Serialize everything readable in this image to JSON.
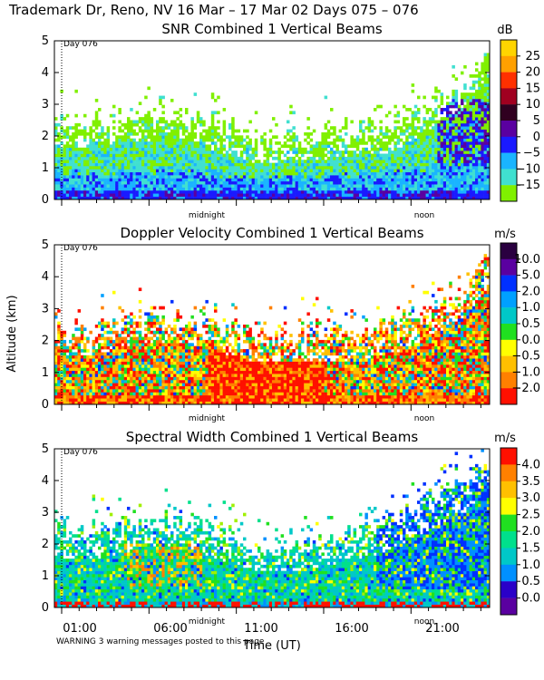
{
  "header": {
    "title": "Trademark Dr, Reno, NV  16 Mar – 17 Mar 02 Days 075 – 076"
  },
  "footer": {
    "warning": "WARNING  3 warning messages posted to this page",
    "time_axis_label": "Time (UT)"
  },
  "colors": {
    "spectral_scale": [
      "#5a00a0",
      "#2a00c8",
      "#0030ff",
      "#0090ff",
      "#00c8c8",
      "#00e08c",
      "#20e020",
      "#a0f000",
      "#ffff00",
      "#ffc000",
      "#ff8000",
      "#ff2000"
    ]
  },
  "chart_data": [
    {
      "type": "heatmap",
      "title": "SNR Combined 1 Vertical Beams",
      "ylabel": "",
      "ylim": [
        0,
        5
      ],
      "yticks": [
        "0",
        "1",
        "2",
        "3",
        "4",
        "5"
      ],
      "day_marker": "Day 076",
      "time_markers": [
        "midnight",
        "noon"
      ],
      "colorbar": {
        "unit": "dB",
        "ticks": [
          "25",
          "20",
          "15",
          "10",
          "5",
          "0",
          "−5",
          "−10",
          "−15"
        ],
        "colors": [
          "#ffd400",
          "#ffa000",
          "#ff3000",
          "#a00020",
          "#300020",
          "#5a00a0",
          "#1a1aff",
          "#1ab4ff",
          "#40e0d0",
          "#80f000"
        ]
      },
      "profile": [
        {
          "t": 0.0,
          "top": 2.5,
          "core": 1.7
        },
        {
          "t": 0.08,
          "top": 2.4,
          "core": 1.6
        },
        {
          "t": 0.18,
          "top": 2.6,
          "core": 1.8
        },
        {
          "t": 0.28,
          "top": 2.7,
          "core": 2.0
        },
        {
          "t": 0.38,
          "top": 2.4,
          "core": 1.5
        },
        {
          "t": 0.48,
          "top": 1.9,
          "core": 1.1
        },
        {
          "t": 0.58,
          "top": 2.0,
          "core": 1.2
        },
        {
          "t": 0.68,
          "top": 2.3,
          "core": 1.4
        },
        {
          "t": 0.78,
          "top": 2.5,
          "core": 1.5
        },
        {
          "t": 0.88,
          "top": 3.0,
          "core": 2.4
        },
        {
          "t": 0.95,
          "top": 3.6,
          "core": 3.0
        },
        {
          "t": 1.0,
          "top": 4.8,
          "core": 4.0
        }
      ]
    },
    {
      "type": "heatmap",
      "title": "Doppler Velocity Combined 1 Vertical Beams",
      "ylabel": "Altitude (km)",
      "ylim": [
        0,
        5
      ],
      "yticks": [
        "0",
        "1",
        "2",
        "3",
        "4",
        "5"
      ],
      "day_marker": "Day 076",
      "time_markers": [
        "midnight",
        "noon"
      ],
      "colorbar": {
        "unit": "m/s",
        "ticks": [
          "10.0",
          "5.0",
          "2.0",
          "1.0",
          "0.5",
          "0.0",
          "−0.5",
          "−1.0",
          "−2.0"
        ],
        "colors": [
          "#2a0040",
          "#5a00a0",
          "#0030ff",
          "#00a0ff",
          "#00c8c8",
          "#20e020",
          "#ffff00",
          "#ffc000",
          "#ff8000",
          "#ff1000"
        ]
      },
      "profile": [
        {
          "t": 0.0,
          "top": 2.4,
          "core": 1.6
        },
        {
          "t": 0.08,
          "top": 2.3,
          "core": 1.5
        },
        {
          "t": 0.18,
          "top": 2.7,
          "core": 1.9
        },
        {
          "t": 0.28,
          "top": 2.7,
          "core": 2.0
        },
        {
          "t": 0.38,
          "top": 2.5,
          "core": 1.6
        },
        {
          "t": 0.48,
          "top": 2.1,
          "core": 1.3
        },
        {
          "t": 0.58,
          "top": 2.2,
          "core": 1.3
        },
        {
          "t": 0.68,
          "top": 2.4,
          "core": 1.4
        },
        {
          "t": 0.78,
          "top": 2.6,
          "core": 1.6
        },
        {
          "t": 0.88,
          "top": 3.0,
          "core": 2.2
        },
        {
          "t": 0.95,
          "top": 3.6,
          "core": 2.8
        },
        {
          "t": 1.0,
          "top": 4.6,
          "core": 3.8
        }
      ]
    },
    {
      "type": "heatmap",
      "title": "Spectral Width Combined 1 Vertical Beams",
      "ylabel": "",
      "ylim": [
        0,
        5
      ],
      "yticks": [
        "0",
        "1",
        "2",
        "3",
        "4",
        "5"
      ],
      "day_marker": "Day 076",
      "time_markers": [
        "midnight",
        "noon"
      ],
      "xticks": [
        "01:00",
        "06:00",
        "11:00",
        "16:00",
        "21:00"
      ],
      "colorbar": {
        "unit": "m/s",
        "ticks": [
          "4.0",
          "3.5",
          "3.0",
          "2.5",
          "2.0",
          "1.5",
          "1.0",
          "0.5",
          "0.0"
        ],
        "colors": [
          "#ff1000",
          "#ff8000",
          "#ffc000",
          "#ffff00",
          "#20e020",
          "#00e08c",
          "#00c8c8",
          "#0090ff",
          "#2a00c8",
          "#5a00a0"
        ]
      },
      "profile": [
        {
          "t": 0.0,
          "top": 2.5,
          "core": 1.6
        },
        {
          "t": 0.08,
          "top": 2.4,
          "core": 1.5
        },
        {
          "t": 0.18,
          "top": 2.6,
          "core": 1.8
        },
        {
          "t": 0.28,
          "top": 2.8,
          "core": 2.0
        },
        {
          "t": 0.38,
          "top": 2.4,
          "core": 1.5
        },
        {
          "t": 0.48,
          "top": 1.9,
          "core": 1.1
        },
        {
          "t": 0.58,
          "top": 2.0,
          "core": 1.2
        },
        {
          "t": 0.68,
          "top": 2.4,
          "core": 1.5
        },
        {
          "t": 0.78,
          "top": 2.8,
          "core": 1.8
        },
        {
          "t": 0.88,
          "top": 3.6,
          "core": 2.6
        },
        {
          "t": 0.95,
          "top": 3.9,
          "core": 3.0
        },
        {
          "t": 1.0,
          "top": 4.8,
          "core": 4.0
        }
      ]
    }
  ]
}
